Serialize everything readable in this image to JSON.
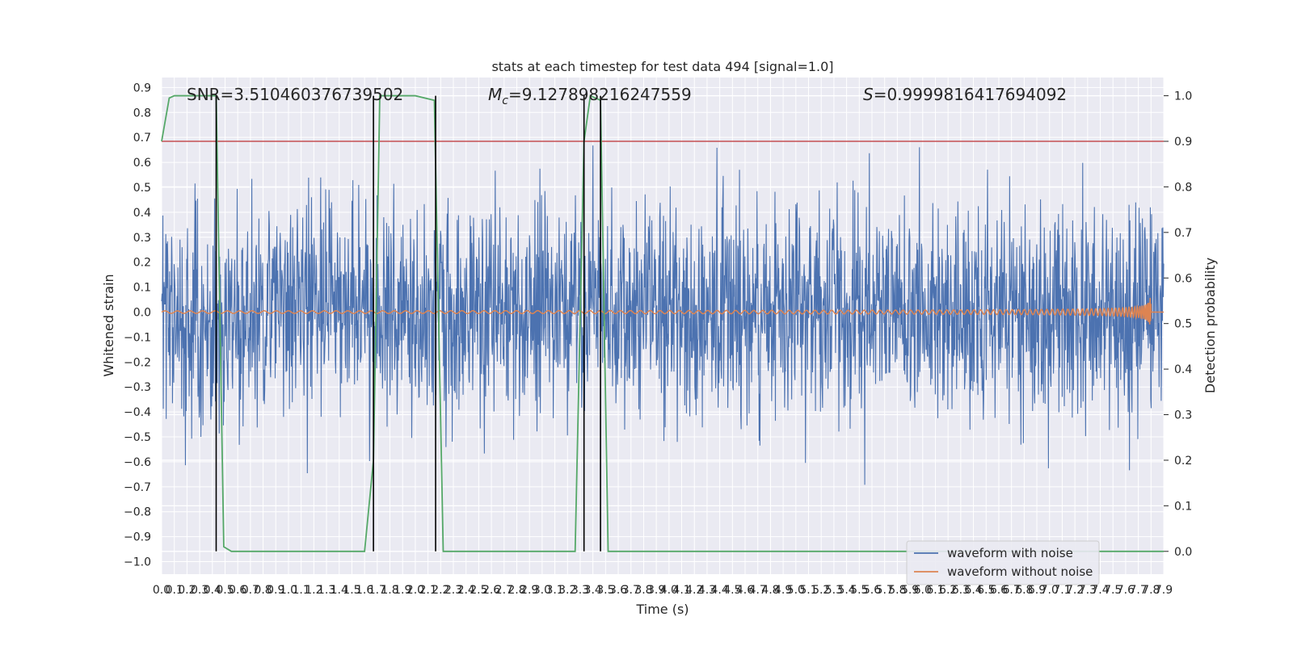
{
  "chart_data": {
    "type": "line",
    "title": "stats at each timestep for test data 494 [signal=1.0]",
    "xlabel": "Time (s)",
    "ylabel_left": "Whitened strain",
    "ylabel_right": "Detection probability",
    "xlim": [
      0,
      7.9
    ],
    "ylim_left": [
      -1.05,
      0.94
    ],
    "ylim_right": [
      -0.05,
      1.04
    ],
    "x_ticks": [
      "0.0",
      "0.1",
      "0.2",
      "0.3",
      "0.4",
      "0.5",
      "0.6",
      "0.7",
      "0.8",
      "0.9",
      "1.0",
      "1.1",
      "1.2",
      "1.3",
      "1.4",
      "1.5",
      "1.6",
      "1.7",
      "1.8",
      "1.9",
      "2.0",
      "2.1",
      "2.2",
      "2.3",
      "2.4",
      "2.5",
      "2.6",
      "2.7",
      "2.8",
      "2.9",
      "3.0",
      "3.1",
      "3.2",
      "3.3",
      "3.4",
      "3.5",
      "3.6",
      "3.7",
      "3.8",
      "3.9",
      "4.0",
      "4.1",
      "4.2",
      "4.3",
      "4.4",
      "4.5",
      "4.6",
      "4.7",
      "4.8",
      "4.9",
      "5.0",
      "5.1",
      "5.2",
      "5.3",
      "5.4",
      "5.5",
      "5.6",
      "5.7",
      "5.8",
      "5.9",
      "6.0",
      "6.1",
      "6.2",
      "6.3",
      "6.4",
      "6.5",
      "6.6",
      "6.7",
      "6.8",
      "6.9",
      "7.0",
      "7.1",
      "7.2",
      "7.3",
      "7.4",
      "7.5",
      "7.6",
      "7.7",
      "7.8",
      "7.9"
    ],
    "y_ticks_left": [
      "0.9",
      "0.8",
      "0.7",
      "0.6",
      "0.5",
      "0.4",
      "0.3",
      "0.2",
      "0.1",
      "0.0",
      "−0.1",
      "−0.2",
      "−0.3",
      "−0.4",
      "−0.5",
      "−0.6",
      "−0.7",
      "−0.8",
      "−0.9",
      "−1.0"
    ],
    "y_ticks_right": [
      "1.0",
      "0.9",
      "0.8",
      "0.7",
      "0.6",
      "0.5",
      "0.4",
      "0.3",
      "0.2",
      "0.1",
      "0.0"
    ],
    "annotations": {
      "snr": "SNR=3.510460376739502",
      "mc_symbol": "M",
      "mc_sub": "c",
      "mc_value": "=9.127898216247559",
      "s_symbol": "S",
      "s_value": "=0.9999816417694092"
    },
    "threshold": 0.9,
    "threshold_color": "#c44e52",
    "detection_segments_x": [
      0.43,
      1.67,
      2.16,
      3.33,
      3.46
    ],
    "detection_probability": {
      "color": "#55a868",
      "x": [
        0.0,
        0.06,
        0.1,
        0.43,
        0.49,
        0.55,
        1.6,
        1.67,
        1.72,
        2.0,
        2.15,
        2.22,
        3.26,
        3.33,
        3.38,
        3.46,
        3.52,
        7.9
      ],
      "y": [
        0.9,
        0.995,
        1.0,
        1.0,
        0.01,
        0.0,
        0.0,
        0.2,
        1.0,
        1.0,
        0.99,
        0.0,
        0.0,
        0.9,
        1.0,
        0.99,
        0.0,
        0.0
      ]
    },
    "series": [
      {
        "name": "waveform with noise",
        "color": "#4c72b0",
        "amplitude": 0.45
      },
      {
        "name": "waveform without noise",
        "color": "#dd8452",
        "amplitude_start": 0.005,
        "amplitude_peak": 0.12,
        "merger_x": 7.8
      }
    ],
    "legend_position": "bottom-right",
    "grid": true,
    "background": "#eaeaf2"
  }
}
